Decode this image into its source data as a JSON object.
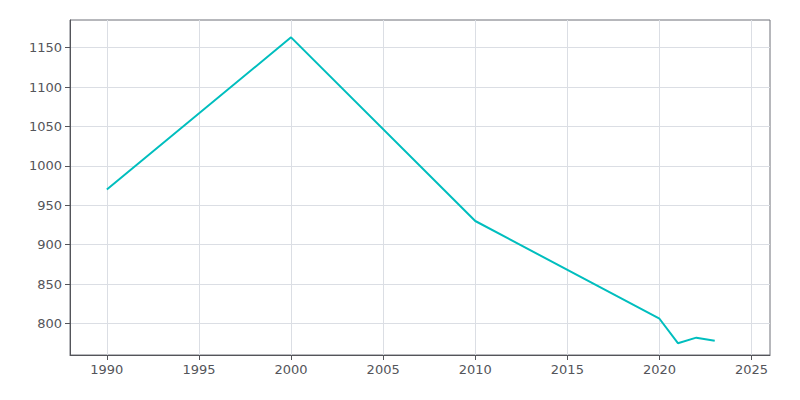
{
  "chart_data": {
    "type": "line",
    "x": [
      1990,
      2000,
      2010,
      2020,
      2021,
      2022,
      2023
    ],
    "values": [
      970,
      1163,
      930,
      806,
      775,
      782,
      778
    ],
    "color": "#00BEBE",
    "xlim": [
      1988,
      2026
    ],
    "ylim": [
      760,
      1185
    ],
    "xticks": [
      1990,
      1995,
      2000,
      2005,
      2010,
      2015,
      2020,
      2025
    ],
    "yticks": [
      800,
      850,
      900,
      950,
      1000,
      1050,
      1100,
      1150
    ],
    "grid": true
  }
}
